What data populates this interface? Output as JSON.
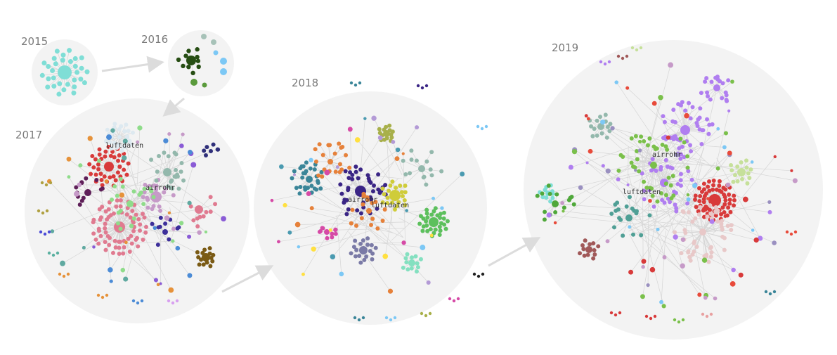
{
  "graphs": [
    {
      "year": "2015",
      "labels": []
    },
    {
      "year": "2016",
      "labels": []
    },
    {
      "year": "2017",
      "labels": [
        "luftdaten",
        "airrohr"
      ]
    },
    {
      "year": "2018",
      "labels": [
        "airrohr",
        "luftdaten"
      ]
    },
    {
      "year": "2019",
      "labels": [
        "airrohr",
        "luftdaten"
      ]
    }
  ],
  "colors": {
    "background_circle": "#f3f3f3",
    "arrow": "#dcdcdc",
    "edge": "#d8d8d8"
  }
}
